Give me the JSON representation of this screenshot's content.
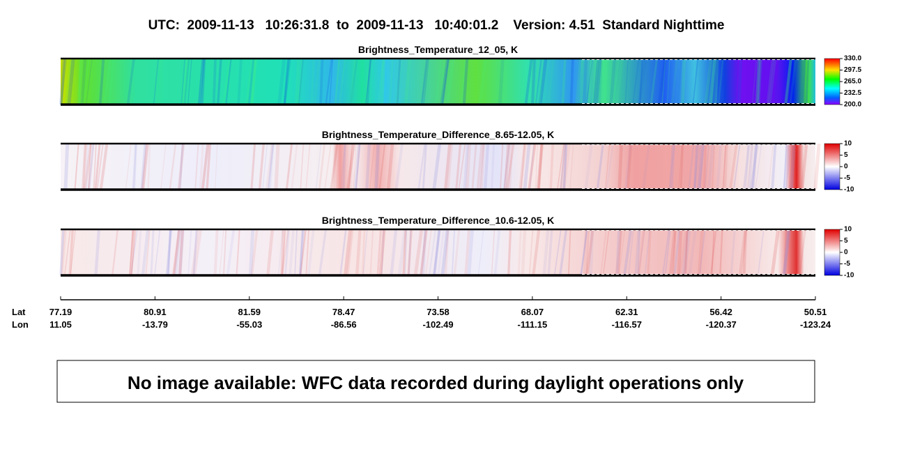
{
  "title": "UTC:  2009-11-13   10:26:31.8  to  2009-11-13   10:40:01.2    Version: 4.51  Standard Nighttime",
  "panels": [
    {
      "title": "Brightness_Temperature_12_05, K",
      "colorbar_ticks": [
        {
          "value": 330,
          "label": "330.0"
        },
        297.5,
        {
          "value": 265,
          "label": "265.0"
        },
        232.5,
        {
          "value": 200,
          "label": "200.0"
        }
      ]
    },
    {
      "title": "Brightness_Temperature_Difference_8.65-12.05, K",
      "colorbar_ticks": [
        10,
        5,
        0,
        -5,
        -10
      ]
    },
    {
      "title": "Brightness_Temperature_Difference_10.6-12.05, K",
      "colorbar_ticks": [
        10,
        5,
        0,
        -5,
        -10
      ]
    }
  ],
  "track_axis": {
    "lat_label": "Lat",
    "lon_label": "Lon",
    "ticks": [
      {
        "lat": 77.19,
        "lon": 11.05
      },
      {
        "lat": 80.91,
        "lon": -13.79
      },
      {
        "lat": 81.59,
        "lon": -55.03
      },
      {
        "lat": 78.47,
        "lon": -86.56
      },
      {
        "lat": 73.58,
        "lon": -102.49
      },
      {
        "lat": 68.07,
        "lon": -111.15
      },
      {
        "lat": 62.31,
        "lon": -116.57
      },
      {
        "lat": 56.42,
        "lon": -120.37
      },
      {
        "lat": 50.51,
        "lon": -123.24
      }
    ]
  },
  "message": "No image available: WFC data recorded during daylight operations only"
}
